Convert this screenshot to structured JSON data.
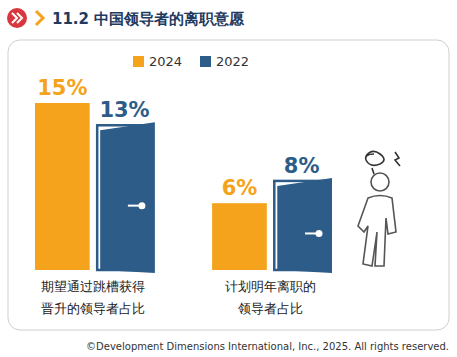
{
  "chart_data": {
    "type": "bar",
    "title": "11.2 中国领导者的离职意愿",
    "categories": [
      "期望通过跳槽获得\n晋升的领导者占比",
      "计划明年离职的\n领导者占比"
    ],
    "series": [
      {
        "name": "2024",
        "color": "#F5A31C",
        "values": [
          15,
          6
        ],
        "value_labels": [
          "15%",
          "6%"
        ]
      },
      {
        "name": "2022",
        "color": "#2D5C88",
        "values": [
          13,
          8
        ],
        "value_labels": [
          "13%",
          "8%"
        ]
      }
    ],
    "ylim": [
      0,
      15
    ],
    "tick_labels": false,
    "data_labels": true,
    "legend": "top",
    "source": "©Development Dimensions International, Inc., 2025. All rights reserved."
  }
}
